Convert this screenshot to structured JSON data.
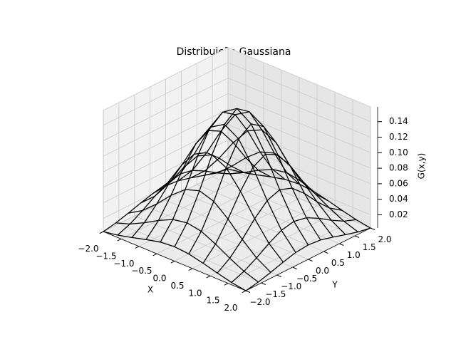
{
  "chart_data": {
    "type": "surface",
    "title": "Distribuição Gaussiana",
    "xlabel": "X",
    "ylabel": "Y",
    "zlabel": "G(x,y)",
    "color": "#000000",
    "grid": true,
    "x": [
      -2,
      -1.6,
      -1.2,
      -0.8,
      -0.4,
      0,
      0.4,
      0.8,
      1.2,
      1.6,
      2
    ],
    "y": [
      -2,
      -1.6,
      -1.2,
      -0.8,
      -0.4,
      0,
      0.4,
      0.8,
      1.2,
      1.6,
      2
    ],
    "z": [
      [
        0.0029,
        0.006,
        0.0105,
        0.0156,
        0.0199,
        0.0215,
        0.0199,
        0.0156,
        0.0105,
        0.006,
        0.0029
      ],
      [
        0.006,
        0.0123,
        0.0215,
        0.0321,
        0.0409,
        0.0443,
        0.0409,
        0.0321,
        0.0215,
        0.0123,
        0.006
      ],
      [
        0.0105,
        0.0215,
        0.0377,
        0.0563,
        0.0715,
        0.0775,
        0.0715,
        0.0563,
        0.0377,
        0.0215,
        0.0105
      ],
      [
        0.0156,
        0.0321,
        0.0563,
        0.0839,
        0.1067,
        0.1156,
        0.1067,
        0.0839,
        0.0563,
        0.0321,
        0.0156
      ],
      [
        0.0199,
        0.0409,
        0.0715,
        0.1067,
        0.1356,
        0.1469,
        0.1356,
        0.1067,
        0.0715,
        0.0409,
        0.0199
      ],
      [
        0.0215,
        0.0443,
        0.0775,
        0.1156,
        0.1469,
        0.1592,
        0.1469,
        0.1156,
        0.0775,
        0.0443,
        0.0215
      ],
      [
        0.0199,
        0.0409,
        0.0715,
        0.1067,
        0.1356,
        0.1469,
        0.1356,
        0.1067,
        0.0715,
        0.0409,
        0.0199
      ],
      [
        0.0156,
        0.0321,
        0.0563,
        0.0839,
        0.1067,
        0.1156,
        0.1067,
        0.0839,
        0.0563,
        0.0321,
        0.0156
      ],
      [
        0.0105,
        0.0215,
        0.0377,
        0.0563,
        0.0715,
        0.0775,
        0.0715,
        0.0563,
        0.0377,
        0.0215,
        0.0105
      ],
      [
        0.006,
        0.0123,
        0.0215,
        0.0321,
        0.0409,
        0.0443,
        0.0409,
        0.0321,
        0.0215,
        0.0123,
        0.006
      ],
      [
        0.0029,
        0.006,
        0.0105,
        0.0156,
        0.0199,
        0.0215,
        0.0199,
        0.0156,
        0.0105,
        0.006,
        0.0029
      ]
    ],
    "xlim": [
      -2,
      2
    ],
    "ylim": [
      -2,
      2
    ],
    "zlim": [
      0.003,
      0.159
    ],
    "xticks": [
      {
        "value": -2,
        "label": "−2.0"
      },
      {
        "value": -1.5,
        "label": "−1.5"
      },
      {
        "value": -1,
        "label": "−1.0"
      },
      {
        "value": -0.5,
        "label": "−0.5"
      },
      {
        "value": 0,
        "label": "0.0"
      },
      0.5,
      {
        "value": 1,
        "label": "1.0"
      },
      1.5,
      {
        "value": 2,
        "label": "2.0"
      }
    ],
    "yticks": [
      {
        "value": -2,
        "label": "−2.0"
      },
      {
        "value": -1.5,
        "label": "−1.5"
      },
      {
        "value": -1,
        "label": "−1.0"
      },
      {
        "value": -0.5,
        "label": "−0.5"
      },
      {
        "value": 0,
        "label": "0.0"
      },
      0.5,
      {
        "value": 1,
        "label": "1.0"
      },
      1.5,
      {
        "value": 2,
        "label": "2.0"
      }
    ],
    "zticks": [
      0.02,
      0.04,
      0.06,
      0.08,
      {
        "value": 0.1,
        "label": "0.10"
      },
      0.12,
      0.14
    ]
  }
}
